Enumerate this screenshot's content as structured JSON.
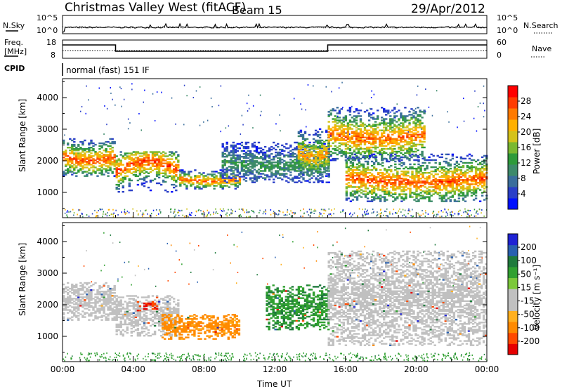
{
  "header": {
    "station": "Christmas Valley West (fitACF)",
    "beam": "Beam 15",
    "date": "29/Apr/2012"
  },
  "strips": {
    "nsky": {
      "label": "N.Sky",
      "ticks": [
        "10^5",
        "10^0"
      ]
    },
    "nsearch": {
      "label": "N.Search",
      "ticks": [
        "10^5",
        "10^0"
      ]
    },
    "freq": {
      "label_line1": "Freq.",
      "label_line2": "[MHz]",
      "ticks": [
        "18",
        "8"
      ]
    },
    "nave": {
      "label": "Nave",
      "ticks": [
        "60",
        "0"
      ]
    },
    "cpid": {
      "label": "CPID",
      "value": "normal (fast) 151 IF"
    }
  },
  "colors": {
    "power_scale": [
      "#0010ff",
      "#2a3fc8",
      "#3a6e9c",
      "#3d8a6a",
      "#2e9a3a",
      "#7ab830",
      "#d4c21a",
      "#ffb000",
      "#ff7a00",
      "#ff3c00",
      "#ff0000"
    ],
    "velocity_scale": [
      "#1e22d4",
      "#2860b0",
      "#1f7a3c",
      "#30a030",
      "#7cc83a",
      "#c0c0c0",
      "#c0c0c0",
      "#ffb020",
      "#ff8a00",
      "#ff4a00",
      "#e60000"
    ]
  },
  "chart_data": [
    {
      "type": "heatmap",
      "panel": "power",
      "ylabel": "Slant Range [km]",
      "ylim": [
        200,
        4600
      ],
      "yticks": [
        "1000",
        "2000",
        "3000",
        "4000"
      ],
      "xticks": [
        "00:00",
        "04:00",
        "08:00",
        "12:00",
        "16:00",
        "20:00",
        "00:00"
      ],
      "xlim_hours": [
        0,
        24
      ],
      "colorbar": {
        "label": "Power [dB]",
        "range": [
          0,
          32
        ],
        "ticks": [
          "4",
          "8",
          "12",
          "16",
          "20",
          "24",
          "28"
        ]
      },
      "bands": [
        {
          "t0": 0.0,
          "t1": 3.0,
          "r0": 1500,
          "r1": 2700,
          "peak_db": 27
        },
        {
          "t0": 3.0,
          "t1": 6.6,
          "r0": 1000,
          "r1": 2300,
          "peak_db": 28
        },
        {
          "t0": 6.6,
          "t1": 10.0,
          "r0": 1100,
          "r1": 1700,
          "peak_db": 26
        },
        {
          "t0": 9.0,
          "t1": 15.0,
          "r0": 1300,
          "r1": 2600,
          "peak_db": 12
        },
        {
          "t0": 13.3,
          "t1": 15.0,
          "r0": 1500,
          "r1": 3000,
          "peak_db": 24
        },
        {
          "t0": 15.0,
          "t1": 20.5,
          "r0": 2000,
          "r1": 3700,
          "peak_db": 26
        },
        {
          "t0": 16.0,
          "t1": 24.0,
          "r0": 700,
          "r1": 2200,
          "peak_db": 27
        }
      ]
    },
    {
      "type": "heatmap",
      "panel": "velocity",
      "ylabel": "Slant Range [km]",
      "ylim": [
        200,
        4600
      ],
      "yticks": [
        "1000",
        "2000",
        "3000",
        "4000"
      ],
      "xticks": [
        "00:00",
        "04:00",
        "08:00",
        "12:00",
        "16:00",
        "20:00",
        "00:00"
      ],
      "xlabel": "Time UT",
      "colorbar": {
        "label": "Velocity [m s⁻¹]",
        "range": [
          -250,
          250
        ],
        "ticks": [
          "200",
          "100",
          "50",
          "15",
          "-15",
          "-50",
          "-100",
          "-200"
        ]
      },
      "bands": [
        {
          "t0": 0.0,
          "t1": 3.0,
          "r0": 1500,
          "r1": 2700,
          "v": 0
        },
        {
          "t0": 3.0,
          "t1": 6.6,
          "r0": 1000,
          "r1": 2300,
          "v": 0
        },
        {
          "t0": 5.6,
          "t1": 10.0,
          "r0": 900,
          "r1": 1700,
          "v": -70
        },
        {
          "t0": 4.2,
          "t1": 5.4,
          "r0": 1800,
          "r1": 2100,
          "v": -200
        },
        {
          "t0": 11.5,
          "t1": 15.0,
          "r0": 1200,
          "r1": 2600,
          "v": 40
        },
        {
          "t0": 15.0,
          "t1": 24.0,
          "r0": 700,
          "r1": 3700,
          "v": 0
        }
      ]
    }
  ]
}
